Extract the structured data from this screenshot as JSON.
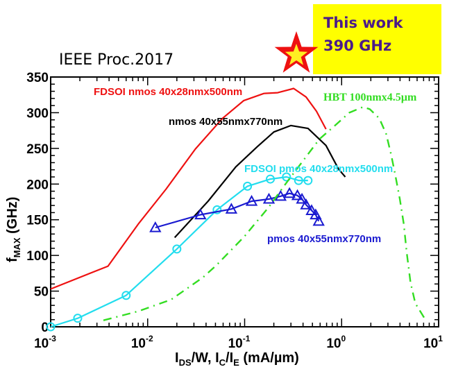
{
  "chart_data": {
    "type": "line",
    "title": "",
    "source_label": "IEEE Proc.2017",
    "xlabel": {
      "main1": "I",
      "sub1": "DS",
      "main2": "/W, I",
      "sub2": "C",
      "main3": "/I",
      "sub3": "E",
      "main4": " (mA/µm)"
    },
    "ylabel": {
      "main": "f",
      "sub": "MAX",
      "unit": "  (GHz)"
    },
    "xscale": "log",
    "xlim": [
      0.001,
      10
    ],
    "ylim": [
      0,
      350
    ],
    "xticks": [
      {
        "base": "10",
        "exp": "-3",
        "value": 0.001
      },
      {
        "base": "10",
        "exp": "-2",
        "value": 0.01
      },
      {
        "base": "10",
        "exp": "-1",
        "value": 0.1
      },
      {
        "base": "10",
        "exp": "0",
        "value": 1
      },
      {
        "base": "10",
        "exp": "1",
        "value": 10
      }
    ],
    "yticks": [
      "0",
      "50",
      "100",
      "150",
      "200",
      "250",
      "300",
      "350"
    ],
    "grid": false,
    "series": [
      {
        "name": "FDSOI nmos 40x28nmx500nm",
        "color": "#ee1111",
        "style": "solid",
        "marker": "none",
        "x": [
          0.001,
          0.0039,
          0.0081,
          0.0155,
          0.031,
          0.059,
          0.098,
          0.158,
          0.219,
          0.32,
          0.43,
          0.55,
          0.69
        ],
        "y": [
          53,
          85,
          145,
          193,
          249,
          292,
          317,
          327,
          328,
          334,
          322,
          302,
          277
        ]
      },
      {
        "name": "nmos 40x55nmx770nm",
        "color": "#000000",
        "style": "solid",
        "marker": "none",
        "x": [
          0.019,
          0.042,
          0.081,
          0.134,
          0.2,
          0.3,
          0.45,
          0.69,
          0.93,
          1.09
        ],
        "y": [
          125,
          176,
          224,
          252,
          273,
          282,
          278,
          254,
          221,
          210
        ]
      },
      {
        "name": "FDSOI pmos 40x28nmx500nm",
        "color": "#22ddee",
        "style": "solid",
        "marker": "circle",
        "x": [
          0.001,
          0.0019,
          0.006,
          0.02,
          0.052,
          0.107,
          0.184,
          0.27,
          0.36,
          0.45
        ],
        "y": [
          0,
          12,
          44,
          109,
          164,
          197,
          207,
          210,
          205,
          205
        ]
      },
      {
        "name": "pmos 40x55nmx770nm",
        "color": "#1a1ad0",
        "style": "solid",
        "marker": "triangle",
        "x": [
          0.012,
          0.035,
          0.073,
          0.118,
          0.178,
          0.235,
          0.29,
          0.35,
          0.39,
          0.43,
          0.49,
          0.54,
          0.58
        ],
        "y": [
          139,
          157,
          165,
          176,
          179,
          183,
          187,
          184,
          179,
          171,
          163,
          157,
          148
        ]
      },
      {
        "name": "HBT 100nmx4.5µm",
        "color": "#33dd22",
        "style": "dashdot",
        "marker": "none",
        "x": [
          0.0035,
          0.0081,
          0.0174,
          0.037,
          0.051,
          0.1,
          0.178,
          0.257,
          0.59,
          0.87,
          1.2,
          1.66,
          1.95,
          2.45,
          2.88,
          3.24,
          3.55,
          3.98,
          4.37,
          4.68,
          5.13,
          5.75,
          7.08
        ],
        "y": [
          9,
          22,
          38,
          69,
          86,
          127,
          168,
          198,
          263,
          283,
          300,
          308,
          305,
          292,
          270,
          241,
          215,
          179,
          144,
          105,
          62,
          33,
          13
        ]
      }
    ],
    "legend_labels": [
      {
        "text": "FDSOI nmos 40x28nmx500nm",
        "color": "#ee1111",
        "placement": "upper-left, above red curve"
      },
      {
        "text": "nmos 40x55nmx770nm",
        "color": "#000000",
        "placement": "upper-center, above black curve"
      },
      {
        "text": "FDSOI pmos 40x28nmx500nm",
        "color": "#22ddee",
        "placement": "center, above cyan curve"
      },
      {
        "text": "pmos 40x55nmx770nm",
        "color": "#1a1ad0",
        "placement": "center-right, below blue curve"
      },
      {
        "text": "HBT 100nmx4.5µm",
        "color": "#33dd22",
        "placement": "upper-right"
      }
    ],
    "annotation": {
      "marker": "star",
      "star_outer_color": "#ee1111",
      "star_inner_color": "#ffee22",
      "box_color": "#ffff00",
      "text_color": "#4b1a8a",
      "lines": [
        "This work",
        "390 GHz"
      ]
    }
  }
}
